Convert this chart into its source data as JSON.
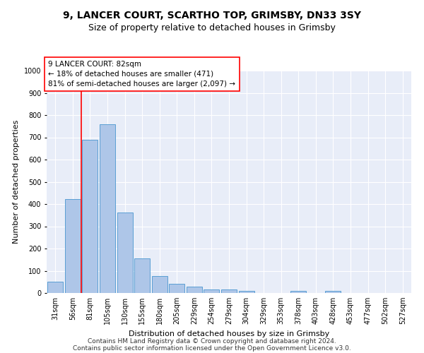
{
  "title1": "9, LANCER COURT, SCARTHO TOP, GRIMSBY, DN33 3SY",
  "title2": "Size of property relative to detached houses in Grimsby",
  "xlabel": "Distribution of detached houses by size in Grimsby",
  "ylabel": "Number of detached properties",
  "categories": [
    "31sqm",
    "56sqm",
    "81sqm",
    "105sqm",
    "130sqm",
    "155sqm",
    "180sqm",
    "205sqm",
    "229sqm",
    "254sqm",
    "279sqm",
    "304sqm",
    "329sqm",
    "353sqm",
    "378sqm",
    "403sqm",
    "428sqm",
    "453sqm",
    "477sqm",
    "502sqm",
    "527sqm"
  ],
  "values": [
    52,
    422,
    688,
    758,
    362,
    155,
    75,
    40,
    27,
    17,
    17,
    10,
    0,
    0,
    10,
    0,
    10,
    0,
    0,
    0,
    0
  ],
  "bar_color": "#aec6e8",
  "bar_edge_color": "#5a9fd4",
  "property_line_x": 1.5,
  "annotation_line1": "9 LANCER COURT: 82sqm",
  "annotation_line2": "← 18% of detached houses are smaller (471)",
  "annotation_line3": "81% of semi-detached houses are larger (2,097) →",
  "annotation_box_color": "white",
  "annotation_box_edge_color": "red",
  "vline_color": "red",
  "ylim": [
    0,
    1000
  ],
  "yticks": [
    0,
    100,
    200,
    300,
    400,
    500,
    600,
    700,
    800,
    900,
    1000
  ],
  "background_color": "#e8edf8",
  "footer1": "Contains HM Land Registry data © Crown copyright and database right 2024.",
  "footer2": "Contains public sector information licensed under the Open Government Licence v3.0.",
  "title1_fontsize": 10,
  "title2_fontsize": 9,
  "xlabel_fontsize": 8,
  "ylabel_fontsize": 8,
  "tick_fontsize": 7,
  "annotation_fontsize": 7.5,
  "footer_fontsize": 6.5
}
